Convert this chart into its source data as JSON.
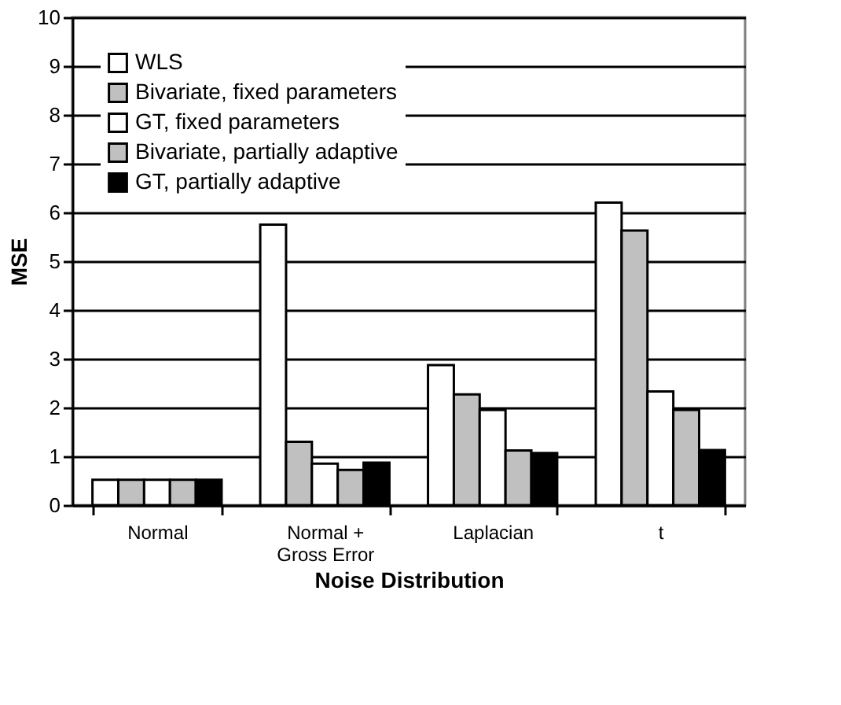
{
  "chart_data": {
    "type": "bar",
    "xlabel": "Noise Distribution",
    "ylabel": "MSE",
    "categories": [
      "Normal",
      "Normal + Gross Error",
      "Laplacian",
      "t"
    ],
    "series": [
      {
        "name": "WLS",
        "color": "#ffffff",
        "values": [
          0.52,
          5.75,
          2.87,
          6.2
        ]
      },
      {
        "name": "Bivariate, fixed parameters",
        "color": "#c0c0c0",
        "values": [
          0.52,
          1.3,
          2.27,
          5.63
        ]
      },
      {
        "name": "GT, fixed parameters",
        "color": "#ffffff",
        "values": [
          0.52,
          0.85,
          1.95,
          2.33
        ]
      },
      {
        "name": "Bivariate, partially adaptive",
        "color": "#c0c0c0",
        "values": [
          0.52,
          0.72,
          1.12,
          1.95
        ]
      },
      {
        "name": "GT, partially adaptive",
        "color": "#000000",
        "values": [
          0.52,
          0.87,
          1.07,
          1.13
        ]
      }
    ],
    "ylim": [
      0,
      10
    ],
    "yticks": [
      0,
      1,
      2,
      3,
      4,
      5,
      6,
      7,
      8,
      9,
      10
    ],
    "grid": "y",
    "legend": "top left"
  }
}
